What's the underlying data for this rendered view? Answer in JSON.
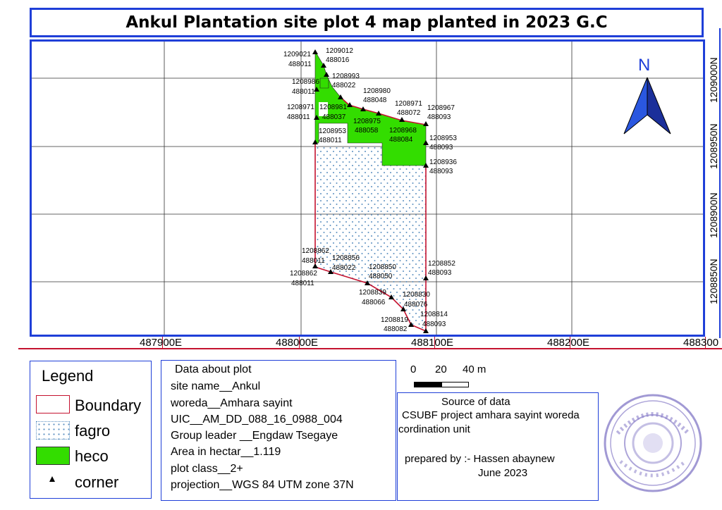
{
  "title": "Ankul Plantation site plot 4 map planted in 2023 G.C",
  "map": {
    "x_ticks": [
      "487900E",
      "488000E",
      "488100E",
      "488200E",
      "488300"
    ],
    "y_ticks": [
      "1209000N",
      "1208950N",
      "1208900N",
      "1208850N"
    ],
    "north_label": "N",
    "colors": {
      "boundary": "#c4122f",
      "heco": "#33dd00",
      "fagro_dots": "#5b8fc0",
      "frame": "#1f3fd8"
    },
    "points": [
      {
        "n": "1209021",
        "e": "488011"
      },
      {
        "n": "1209012",
        "e": "488016"
      },
      {
        "n": "1208993",
        "e": "488022"
      },
      {
        "n": "1208986",
        "e": "488011"
      },
      {
        "n": "1208980",
        "e": "488048"
      },
      {
        "n": "1208971",
        "e": "488011"
      },
      {
        "n": "1208981",
        "e": "488037"
      },
      {
        "n": "1208971",
        "e": "488072"
      },
      {
        "n": "1208967",
        "e": "488093"
      },
      {
        "n": "1208975",
        "e": "488058"
      },
      {
        "n": "1208968",
        "e": "488084"
      },
      {
        "n": "1208953",
        "e": "488011"
      },
      {
        "n": "1208953",
        "e": "488093"
      },
      {
        "n": "1208936",
        "e": "488093"
      },
      {
        "n": "1208862",
        "e": "488011"
      },
      {
        "n": "1208856",
        "e": "488022"
      },
      {
        "n": "1208850",
        "e": "488050"
      },
      {
        "n": "1208852",
        "e": "488093"
      },
      {
        "n": "1208862",
        "e": "488011"
      },
      {
        "n": "1208839",
        "e": "488066"
      },
      {
        "n": "1208830",
        "e": "488076"
      },
      {
        "n": "1208814",
        "e": "488093"
      },
      {
        "n": "1208819",
        "e": "488082"
      }
    ]
  },
  "legend": {
    "title": "Legend",
    "items": [
      {
        "label": "Boundary",
        "icon": "boundary-swatch"
      },
      {
        "label": "fagro",
        "icon": "dotted-swatch"
      },
      {
        "label": "heco",
        "icon": "green-swatch"
      },
      {
        "label": "corner",
        "icon": "triangle-icon"
      }
    ]
  },
  "plot_info": {
    "heading": "Data about plot",
    "lines": [
      "site name__Ankul",
      "woreda__Amhara sayint",
      "UIC__AM_DD_088_16_0988_004",
      "Group leader __Engdaw Tsegaye",
      "Area in hectar__1.119",
      "plot class__2+",
      "projection__WGS 84 UTM zone 37N"
    ]
  },
  "scale": {
    "labels": [
      "0",
      "20",
      "40 m"
    ]
  },
  "source": {
    "heading": "Source of data",
    "line1": "CSUBF project amhara sayint woreda",
    "line2": "cordination unit",
    "prepared": "prepared by :- Hassen abaynew",
    "date": "June 2023"
  }
}
